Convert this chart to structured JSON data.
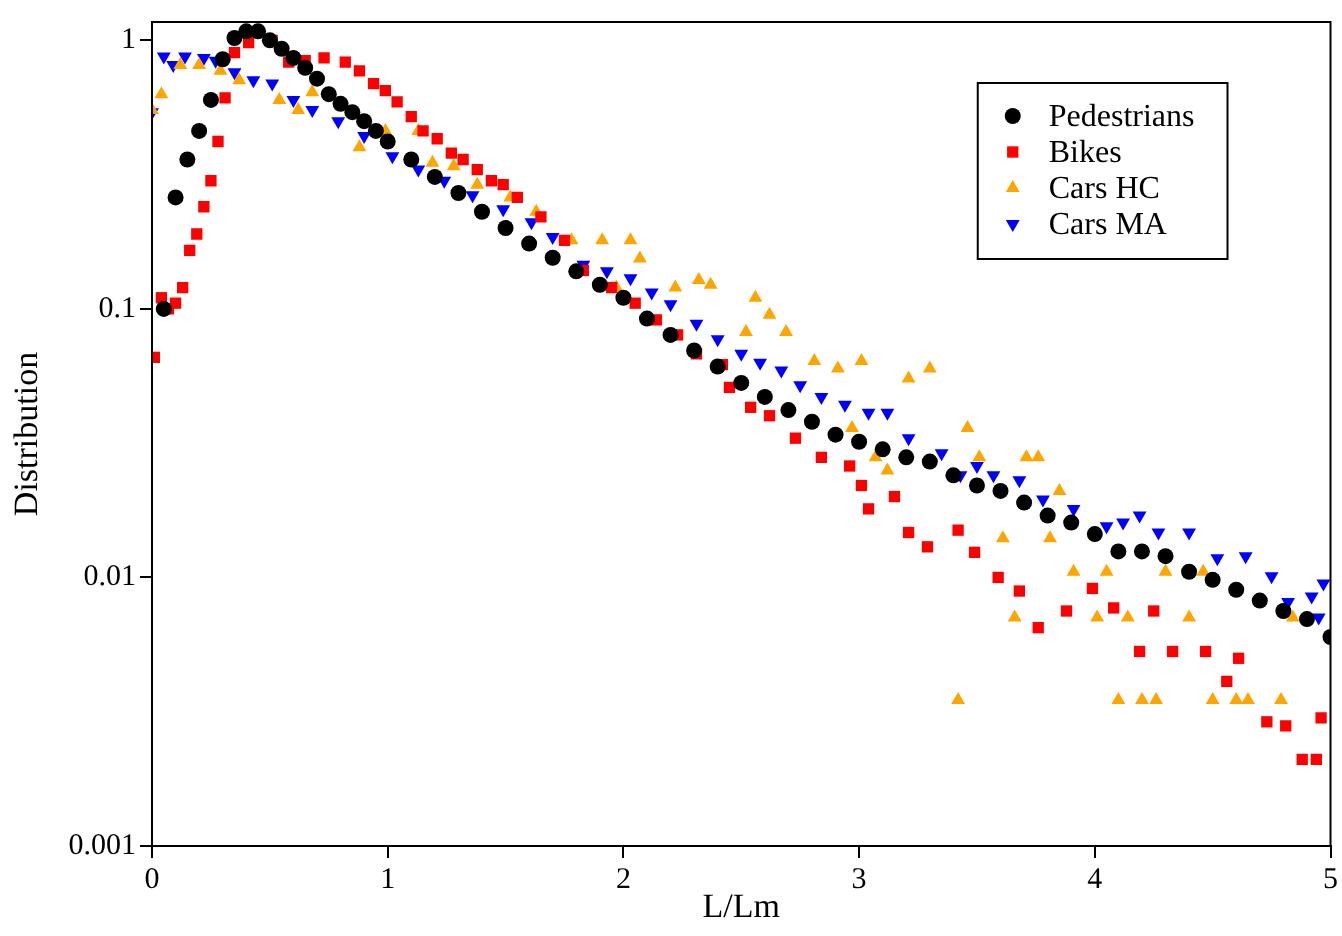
{
  "chart_data": {
    "type": "scatter",
    "xlabel": "L/Lm",
    "ylabel": "Distribution",
    "log": "y",
    "xlim": [
      0,
      5
    ],
    "xticks": [
      0,
      1,
      2,
      3,
      4,
      5
    ],
    "ylim": [
      0.001,
      1.17
    ],
    "yticks": [
      1,
      0.1,
      0.01,
      0.001
    ],
    "grid": false,
    "legend": "top right",
    "series": [
      {
        "name": "Pedestrians",
        "color": "#000000",
        "marker": "circle",
        "x": [
          0.05,
          0.1,
          0.15,
          0.2,
          0.25,
          0.3,
          0.35,
          0.4,
          0.45,
          0.5,
          0.55,
          0.6,
          0.65,
          0.7,
          0.75,
          0.8,
          0.85,
          0.9,
          0.95,
          1.0,
          1.1,
          1.2,
          1.3,
          1.4,
          1.5,
          1.6,
          1.7,
          1.8,
          1.9,
          2.0,
          2.1,
          2.2,
          2.3,
          2.4,
          2.5,
          2.6,
          2.7,
          2.8,
          2.9,
          3.0,
          3.1,
          3.2,
          3.3,
          3.4,
          3.5,
          3.6,
          3.7,
          3.8,
          3.9,
          4.0,
          4.1,
          4.2,
          4.3,
          4.4,
          4.5,
          4.6,
          4.7,
          4.8,
          4.9,
          5.0
        ],
        "values": [
          0.1,
          0.26,
          0.36,
          0.46,
          0.6,
          0.85,
          1.02,
          1.08,
          1.08,
          1.0,
          0.93,
          0.86,
          0.79,
          0.72,
          0.63,
          0.58,
          0.54,
          0.5,
          0.46,
          0.42,
          0.36,
          0.31,
          0.27,
          0.23,
          0.2,
          0.175,
          0.155,
          0.138,
          0.123,
          0.11,
          0.092,
          0.08,
          0.07,
          0.061,
          0.053,
          0.047,
          0.042,
          0.038,
          0.034,
          0.032,
          0.03,
          0.028,
          0.027,
          0.024,
          0.022,
          0.021,
          0.019,
          0.017,
          0.016,
          0.0145,
          0.0125,
          0.0125,
          0.012,
          0.0105,
          0.0098,
          0.009,
          0.0082,
          0.0075,
          0.007,
          0.006
        ]
      },
      {
        "name": "Bikes",
        "color": "#ff0000",
        "marker": "square",
        "x": [
          0.01,
          0.04,
          0.07,
          0.1,
          0.13,
          0.16,
          0.19,
          0.22,
          0.25,
          0.28,
          0.31,
          0.35,
          0.41,
          0.51,
          0.58,
          0.65,
          0.73,
          0.82,
          0.88,
          0.94,
          0.99,
          1.04,
          1.1,
          1.15,
          1.21,
          1.27,
          1.32,
          1.38,
          1.44,
          1.49,
          1.55,
          1.65,
          1.75,
          1.83,
          1.95,
          2.05,
          2.14,
          2.23,
          2.31,
          2.42,
          2.45,
          2.54,
          2.62,
          2.73,
          2.84,
          2.96,
          3.01,
          3.04,
          3.15,
          3.21,
          3.29,
          3.42,
          3.49,
          3.59,
          3.68,
          3.76,
          3.88,
          3.99,
          4.08,
          4.19,
          4.25,
          4.33,
          4.47,
          4.56,
          4.61,
          4.73,
          4.81,
          4.88,
          4.94,
          4.96
        ],
        "values": [
          0.066,
          0.11,
          0.1,
          0.105,
          0.12,
          0.165,
          0.19,
          0.24,
          0.3,
          0.42,
          0.61,
          0.9,
          0.98,
          1.0,
          0.83,
          0.84,
          0.86,
          0.83,
          0.77,
          0.69,
          0.65,
          0.59,
          0.52,
          0.46,
          0.43,
          0.38,
          0.36,
          0.33,
          0.3,
          0.29,
          0.26,
          0.22,
          0.18,
          0.139,
          0.12,
          0.105,
          0.091,
          0.08,
          0.068,
          0.062,
          0.051,
          0.043,
          0.04,
          0.033,
          0.028,
          0.026,
          0.022,
          0.018,
          0.02,
          0.0147,
          0.013,
          0.015,
          0.0124,
          0.01,
          0.0089,
          0.0065,
          0.0075,
          0.0091,
          0.0077,
          0.0053,
          0.0075,
          0.0053,
          0.0053,
          0.0041,
          0.005,
          0.0029,
          0.0028,
          0.0021,
          0.0021,
          0.003
        ]
      },
      {
        "name": "Cars HC",
        "color": "#ffa500",
        "marker": "triangle",
        "x": [
          0.0,
          0.04,
          0.12,
          0.2,
          0.29,
          0.37,
          0.54,
          0.62,
          0.68,
          0.88,
          0.99,
          1.13,
          1.19,
          1.28,
          1.38,
          1.52,
          1.63,
          1.78,
          1.91,
          1.97,
          2.03,
          2.07,
          2.22,
          2.32,
          2.37,
          2.52,
          2.56,
          2.62,
          2.69,
          2.81,
          2.91,
          2.97,
          3.01,
          3.07,
          3.12,
          3.21,
          3.3,
          3.42,
          3.46,
          3.51,
          3.61,
          3.66,
          3.71,
          3.76,
          3.81,
          3.85,
          3.91,
          4.01,
          4.05,
          4.1,
          4.14,
          4.2,
          4.26,
          4.3,
          4.4,
          4.46,
          4.5,
          4.6,
          4.65,
          4.79,
          4.84
        ],
        "values": [
          0.55,
          0.63,
          0.81,
          0.81,
          0.77,
          0.71,
          0.6,
          0.55,
          0.64,
          0.4,
          0.46,
          0.46,
          0.35,
          0.34,
          0.29,
          0.26,
          0.23,
          0.18,
          0.18,
          0.12,
          0.18,
          0.154,
          0.12,
          0.128,
          0.123,
          0.082,
          0.11,
          0.095,
          0.082,
          0.064,
          0.06,
          0.036,
          0.064,
          0.028,
          0.025,
          0.055,
          0.06,
          0.0035,
          0.036,
          0.028,
          0.014,
          0.0071,
          0.028,
          0.028,
          0.014,
          0.021,
          0.0105,
          0.0071,
          0.0105,
          0.0035,
          0.0071,
          0.0035,
          0.0035,
          0.0105,
          0.0071,
          0.0105,
          0.0035,
          0.0035,
          0.0035,
          0.0035,
          0.0071
        ]
      },
      {
        "name": "Cars MA",
        "color": "#0000ff",
        "marker": "triangle-down",
        "x": [
          0.0,
          0.05,
          0.09,
          0.14,
          0.22,
          0.27,
          0.35,
          0.43,
          0.51,
          0.6,
          0.68,
          0.79,
          0.9,
          1.02,
          1.13,
          1.24,
          1.36,
          1.49,
          1.61,
          1.7,
          1.83,
          1.93,
          2.03,
          2.12,
          2.2,
          2.31,
          2.4,
          2.5,
          2.58,
          2.67,
          2.75,
          2.84,
          2.94,
          3.04,
          3.12,
          3.21,
          3.35,
          3.43,
          3.5,
          3.57,
          3.68,
          3.78,
          3.91,
          4.05,
          4.12,
          4.19,
          4.27,
          4.4,
          4.52,
          4.64,
          4.75,
          4.82,
          4.92,
          4.95,
          4.97
        ],
        "values": [
          0.54,
          0.87,
          0.81,
          0.87,
          0.86,
          0.84,
          0.76,
          0.71,
          0.69,
          0.6,
          0.55,
          0.5,
          0.44,
          0.37,
          0.33,
          0.3,
          0.265,
          0.235,
          0.21,
          0.185,
          0.146,
          0.138,
          0.13,
          0.115,
          0.104,
          0.088,
          0.077,
          0.068,
          0.063,
          0.059,
          0.052,
          0.047,
          0.044,
          0.041,
          0.041,
          0.033,
          0.029,
          0.024,
          0.026,
          0.024,
          0.023,
          0.0195,
          0.018,
          0.0155,
          0.016,
          0.017,
          0.0147,
          0.0147,
          0.0118,
          0.012,
          0.0101,
          0.0081,
          0.0085,
          0.0071,
          0.0095
        ]
      }
    ]
  }
}
